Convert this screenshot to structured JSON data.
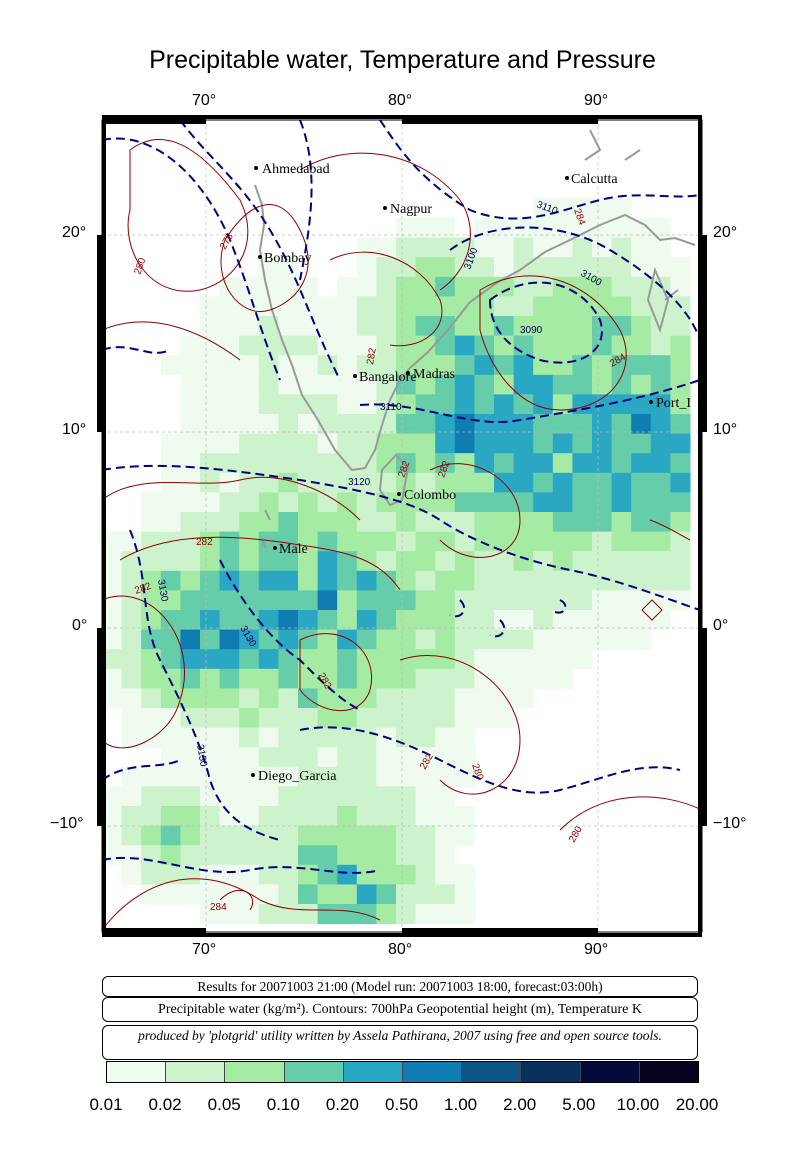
{
  "title": "Precipitable water, Temperature and Pressure",
  "map": {
    "lon_ticks": [
      "70°",
      "80°",
      "90°"
    ],
    "lat_ticks_left": [
      "20°",
      "10°",
      "0°",
      "−10°"
    ],
    "lat_ticks_right": [
      "20°",
      "10°",
      "0°",
      "−10°"
    ],
    "cities": [
      {
        "name": "Ahmedabad"
      },
      {
        "name": "Calcutta"
      },
      {
        "name": "Nagpur"
      },
      {
        "name": "Bombay"
      },
      {
        "name": "Bangalore"
      },
      {
        "name": "Madras"
      },
      {
        "name": "Port_I"
      },
      {
        "name": "Colombo"
      },
      {
        "name": "Male"
      },
      {
        "name": "Diego_Garcia"
      }
    ],
    "height_contour_labels": [
      "3110",
      "3100",
      "3100",
      "3090",
      "3110",
      "3120",
      "3130",
      "3130",
      "3130"
    ],
    "temperature_contour_labels": [
      "278",
      "280",
      "284",
      "282",
      "284",
      "282",
      "282",
      "282",
      "282",
      "282",
      "282",
      "280",
      "280",
      "284"
    ]
  },
  "info": {
    "run_line": "Results for 20071003 21:00 (Model run: 20071003 18:00, forecast:03:00h)",
    "field_line": "Precipitable water (kg/m²).  Contours: 700hPa Geopotential height (m), Temperature K",
    "credit_line": "produced by 'plotgrid' utility written by Assela Pathirana, 2007 using free and open source tools."
  },
  "colorbar": {
    "labels": [
      "0.01",
      "0.02",
      "0.05",
      "0.10",
      "0.20",
      "0.50",
      "1.00",
      "2.00",
      "5.00",
      "10.00",
      "20.00"
    ],
    "colors": [
      "#eefbee",
      "#cdf3cd",
      "#a6eba3",
      "#66cdaa",
      "#2aa7c2",
      "#0f7db2",
      "#0a5585",
      "#08305e",
      "#050a3a",
      "#06031e",
      "#000000"
    ]
  }
}
